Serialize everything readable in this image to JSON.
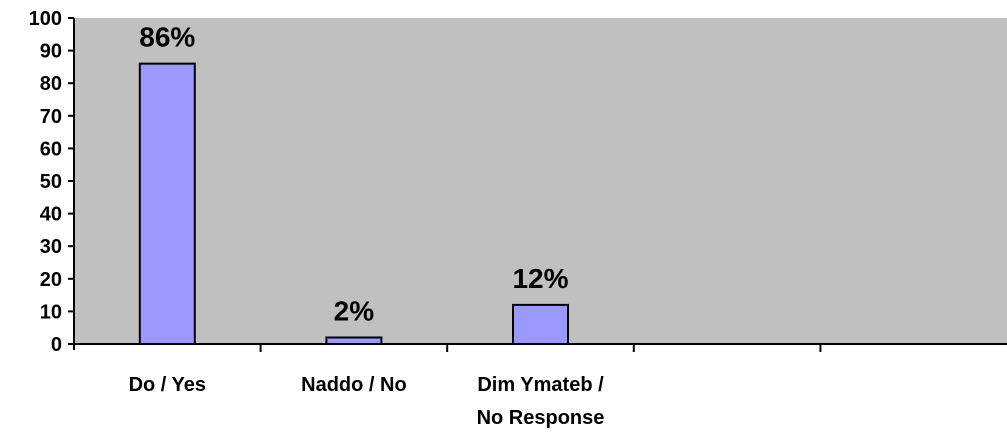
{
  "chart_data": {
    "type": "bar",
    "categories": [
      [
        "Do / Yes"
      ],
      [
        "Naddo / No"
      ],
      [
        "Dim Ymateb /",
        "No Response"
      ],
      [
        ""
      ],
      [
        ""
      ]
    ],
    "values": [
      86,
      2,
      12,
      null,
      null
    ],
    "data_labels": [
      "86%",
      "2%",
      "12%",
      "",
      ""
    ],
    "ylim": [
      0,
      100
    ],
    "yticks": [
      0,
      10,
      20,
      30,
      40,
      50,
      60,
      70,
      80,
      90,
      100
    ],
    "grid": false,
    "legend": "none",
    "title": "",
    "xlabel": "",
    "ylabel": ""
  },
  "colors": {
    "plot_background": "#c0c0c0",
    "bar_fill": "#9999ff",
    "bar_stroke": "#000000",
    "axis": "#000000"
  }
}
